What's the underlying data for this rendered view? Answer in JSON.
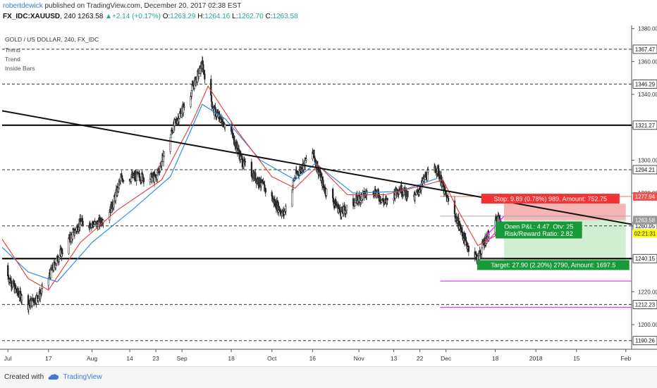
{
  "header": {
    "author": "robertdewick",
    "published": " published on TradingView.com, December 20, 2017 02:38 EST",
    "symbol": "FX_IDC:XAUUSD",
    "interval": ", 240",
    "last": "1263.58",
    "change": "+2.14 (+0.17%)",
    "o_label": "O:",
    "open": "1263.29",
    "h_label": "H:",
    "high": "1264.16",
    "l_label": "L:",
    "low": "1262.70",
    "c_label": "C:",
    "close": "1263.58"
  },
  "legend": {
    "title": "GOLD / US DOLLAR, 240, FX_IDC",
    "items": [
      "Trend",
      "Trend",
      "Inside Bars"
    ]
  },
  "footer": {
    "created_with": "Created with",
    "brand": "TradingView"
  },
  "colors": {
    "up": "#26a69a",
    "down": "#ef5350",
    "candle": "#222222",
    "ema_fast": "#e53935",
    "ema_slow": "#1e88e5",
    "stop_zone": "#f4a7a7",
    "target_zone": "#cdeccd",
    "magenta": "#e040fb",
    "badge_green": "#199a3a",
    "badge_red": "#f23333",
    "badge_yellow": "#ffff00"
  },
  "chart_data": {
    "type": "candlestick",
    "title": "GOLD / US DOLLAR, 240, FX_IDC",
    "ylim": [
      1185,
      1382
    ],
    "y_ticks": [
      "1380.00",
      "1360.00",
      "1340.00",
      "1320.00",
      "1300.00",
      "1280.00",
      "1260.00",
      "1240.00",
      "1220.00",
      "1200.00"
    ],
    "y_tick_values": [
      1380,
      1360,
      1340,
      1320,
      1300,
      1280,
      1260,
      1240,
      1220,
      1200
    ],
    "x_start": "2017-07-01",
    "x_end": "2018-02-03",
    "x_ticks": [
      {
        "label": "Jul",
        "date": "2017-07-03"
      },
      {
        "label": "17",
        "date": "2017-07-17"
      },
      {
        "label": "Aug",
        "date": "2017-08-01"
      },
      {
        "label": "14",
        "date": "2017-08-14"
      },
      {
        "label": "23",
        "date": "2017-08-23"
      },
      {
        "label": "Sep",
        "date": "2017-09-01"
      },
      {
        "label": "18",
        "date": "2017-09-18"
      },
      {
        "label": "Oct",
        "date": "2017-10-02"
      },
      {
        "label": "16",
        "date": "2017-10-16"
      },
      {
        "label": "Nov",
        "date": "2017-11-01"
      },
      {
        "label": "13",
        "date": "2017-11-13"
      },
      {
        "label": "22",
        "date": "2017-11-22"
      },
      {
        "label": "Dec",
        "date": "2017-12-01"
      },
      {
        "label": "18",
        "date": "2017-12-18"
      },
      {
        "label": "2018",
        "date": "2018-01-01"
      },
      {
        "label": "15",
        "date": "2018-01-15"
      },
      {
        "label": "Feb",
        "date": "2018-02-01"
      }
    ],
    "price_path": [
      [
        "2017-07-01",
        1236
      ],
      [
        "2017-07-06",
        1220
      ],
      [
        "2017-07-10",
        1212
      ],
      [
        "2017-07-14",
        1218
      ],
      [
        "2017-07-21",
        1243
      ],
      [
        "2017-07-28",
        1262
      ],
      [
        "2017-08-03",
        1261
      ],
      [
        "2017-08-08",
        1272
      ],
      [
        "2017-08-11",
        1289
      ],
      [
        "2017-08-17",
        1290
      ],
      [
        "2017-08-23",
        1289
      ],
      [
        "2017-08-29",
        1320
      ],
      [
        "2017-09-03",
        1337
      ],
      [
        "2017-09-08",
        1358
      ],
      [
        "2017-09-12",
        1330
      ],
      [
        "2017-09-18",
        1317
      ],
      [
        "2017-09-22",
        1298
      ],
      [
        "2017-09-29",
        1284
      ],
      [
        "2017-10-06",
        1267
      ],
      [
        "2017-10-10",
        1290
      ],
      [
        "2017-10-16",
        1305
      ],
      [
        "2017-10-20",
        1283
      ],
      [
        "2017-10-26",
        1268
      ],
      [
        "2017-11-01",
        1277
      ],
      [
        "2017-11-06",
        1282
      ],
      [
        "2017-11-10",
        1274
      ],
      [
        "2017-11-15",
        1283
      ],
      [
        "2017-11-20",
        1276
      ],
      [
        "2017-11-24",
        1290
      ],
      [
        "2017-11-28",
        1295
      ],
      [
        "2017-12-01",
        1278
      ],
      [
        "2017-12-05",
        1263
      ],
      [
        "2017-12-08",
        1249
      ],
      [
        "2017-12-12",
        1240
      ],
      [
        "2017-12-14",
        1250
      ],
      [
        "2017-12-19",
        1264
      ]
    ],
    "ema_fast": [
      [
        "2017-07-01",
        1252
      ],
      [
        "2017-07-10",
        1228
      ],
      [
        "2017-07-17",
        1221
      ],
      [
        "2017-07-28",
        1250
      ],
      [
        "2017-08-10",
        1270
      ],
      [
        "2017-08-25",
        1288
      ],
      [
        "2017-09-05",
        1325
      ],
      [
        "2017-09-10",
        1345
      ],
      [
        "2017-09-20",
        1318
      ],
      [
        "2017-10-02",
        1290
      ],
      [
        "2017-10-10",
        1283
      ],
      [
        "2017-10-18",
        1297
      ],
      [
        "2017-10-28",
        1279
      ],
      [
        "2017-11-10",
        1279
      ],
      [
        "2017-11-24",
        1285
      ],
      [
        "2017-11-30",
        1288
      ],
      [
        "2017-12-05",
        1270
      ],
      [
        "2017-12-12",
        1248
      ],
      [
        "2017-12-19",
        1255
      ]
    ],
    "ema_slow": [
      [
        "2017-07-01",
        1247
      ],
      [
        "2017-07-10",
        1232
      ],
      [
        "2017-07-20",
        1226
      ],
      [
        "2017-08-01",
        1250
      ],
      [
        "2017-08-15",
        1270
      ],
      [
        "2017-08-28",
        1290
      ],
      [
        "2017-09-08",
        1334
      ],
      [
        "2017-09-16",
        1325
      ],
      [
        "2017-09-28",
        1300
      ],
      [
        "2017-10-10",
        1288
      ],
      [
        "2017-10-17",
        1298
      ],
      [
        "2017-10-30",
        1280
      ],
      [
        "2017-11-15",
        1281
      ],
      [
        "2017-11-28",
        1289
      ]
    ],
    "dashed_levels": [
      1367.47,
      1346.29,
      1294.21,
      1260.05,
      1212.23,
      1190.26
    ],
    "solid_levels": [
      1321.27,
      1240.15
    ],
    "axis_levels": [
      {
        "value": 1367.47,
        "label": "1367.47"
      },
      {
        "value": 1346.29,
        "label": "1346.29"
      },
      {
        "value": 1321.27,
        "label": "1321.27"
      },
      {
        "value": 1294.21,
        "label": "1294.21"
      },
      {
        "value": 1260.05,
        "label": "1260.05"
      },
      {
        "value": 1240.15,
        "label": "1240.15"
      },
      {
        "value": 1212.23,
        "label": "1212.23"
      },
      {
        "value": 1190.26,
        "label": "1190.26"
      }
    ],
    "trendline": {
      "start": [
        "2017-07-01",
        1330
      ],
      "end": [
        "2018-02-03",
        1261
      ]
    },
    "position": {
      "start": "2017-12-21",
      "end": "2018-02-01",
      "entry": 1263.58,
      "stop": 1273.5,
      "target": 1235.7
    },
    "price_lines": [
      {
        "value": 1277.94,
        "label": "1277.94",
        "color": "#ef5350"
      },
      {
        "value": 1263.58,
        "label": "1263.58",
        "color": "#999999"
      }
    ],
    "countdown": "02:21:31",
    "magenta_levels": [
      1226.5,
      1210.5
    ],
    "channel": {
      "upper": [
        [
          "2017-12-15",
          1254
        ],
        [
          "2017-12-21",
          1266
        ]
      ],
      "lower": [
        [
          "2017-12-15",
          1250
        ],
        [
          "2017-12-21",
          1262
        ]
      ]
    },
    "annotations": {
      "stop": "Stop: 9.89 (0.78%) 989, Amount: 752.75",
      "open": "Open P&L: 4.47, Qty: 25",
      "rr": "Risk/Reward Ratio: 2.82",
      "target": "Target: 27.90 (2.20%) 2790, Amount: 1697.5"
    }
  }
}
